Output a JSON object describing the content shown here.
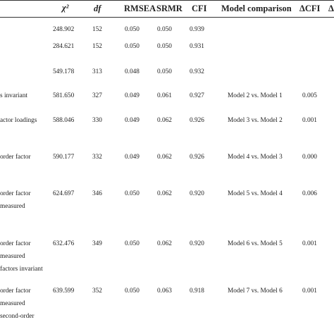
{
  "table": {
    "headers": {
      "chi2": "χ²",
      "df": "df",
      "rmsea": "RMSEA",
      "srmr": "SRMR",
      "cfi": "CFI",
      "comparison": "Model comparison",
      "dcfi": "ΔCFI",
      "cut": "Δ"
    },
    "rows": [
      {
        "desc": [],
        "chi2": "248.902",
        "df": "152",
        "rmsea": "0.050",
        "srmr": "0.050",
        "cfi": "0.939",
        "comparison": "",
        "dcfi": ""
      },
      {
        "desc": [],
        "chi2": "284.621",
        "df": "152",
        "rmsea": "0.050",
        "srmr": "0.050",
        "cfi": "0.931",
        "comparison": "",
        "dcfi": ""
      },
      {
        "desc": [],
        "chi2": "549.178",
        "df": "313",
        "rmsea": "0.048",
        "srmr": "0.050",
        "cfi": "0.932",
        "comparison": "",
        "dcfi": ""
      },
      {
        "desc": [
          "s invariant"
        ],
        "chi2": "581.650",
        "df": "327",
        "rmsea": "0.049",
        "srmr": "0.061",
        "cfi": "0.927",
        "comparison": "Model 2 vs. Model 1",
        "dcfi": "0.005"
      },
      {
        "desc": [
          "actor loadings"
        ],
        "chi2": "588.046",
        "df": "330",
        "rmsea": "0.049",
        "srmr": "0.062",
        "cfi": "0.926",
        "comparison": "Model 3 vs. Model 2",
        "dcfi": "0.001"
      },
      {
        "desc": [
          "order factor"
        ],
        "chi2": "590.177",
        "df": "332",
        "rmsea": "0.049",
        "srmr": "0.062",
        "cfi": "0.926",
        "comparison": "Model 4 vs. Model 3",
        "dcfi": "0.000"
      },
      {
        "desc": [
          "order factor",
          "measured"
        ],
        "chi2": "624.697",
        "df": "346",
        "rmsea": "0.050",
        "srmr": "0.062",
        "cfi": "0.920",
        "comparison": "Model 5 vs. Model 4",
        "dcfi": "0.006"
      },
      {
        "desc": [
          "order factor",
          "measured",
          "factors invariant"
        ],
        "chi2": "632.476",
        "df": "349",
        "rmsea": "0.050",
        "srmr": "0.062",
        "cfi": "0.920",
        "comparison": "Model 6 vs. Model 5",
        "dcfi": "0.001"
      },
      {
        "desc": [
          "order factor",
          "measured",
          "second-order"
        ],
        "chi2": "639.599",
        "df": "352",
        "rmsea": "0.050",
        "srmr": "0.063",
        "cfi": "0.918",
        "comparison": "Model 7 vs. Model 6",
        "dcfi": "0.001"
      }
    ]
  }
}
